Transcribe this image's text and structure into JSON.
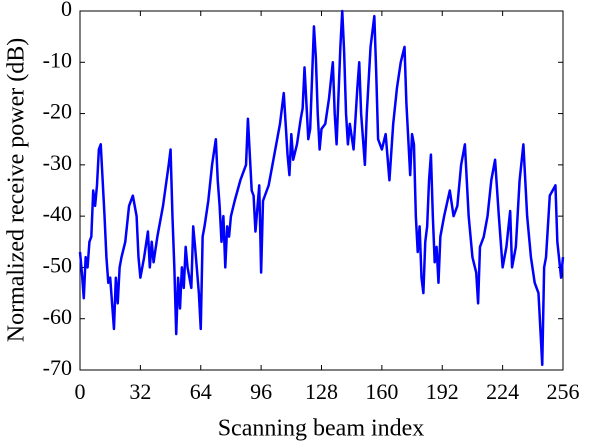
{
  "chart_data": {
    "type": "line",
    "xlabel": "Scanning beam index",
    "ylabel": "Normalized receive power (dB)",
    "xlim": [
      0,
      256
    ],
    "ylim": [
      -70,
      0
    ],
    "xticks": [
      0,
      32,
      64,
      96,
      128,
      160,
      192,
      224,
      256
    ],
    "yticks": [
      -70,
      -60,
      -50,
      -40,
      -30,
      -20,
      -10,
      0
    ],
    "grid": false,
    "series": [
      {
        "color": "#0000ff",
        "x": [
          0,
          1,
          2,
          3,
          4,
          5,
          6,
          7,
          8,
          9,
          10,
          11,
          12,
          13,
          14,
          15,
          16,
          17,
          18,
          19,
          20,
          21,
          22,
          24,
          26,
          28,
          30,
          31,
          32,
          34,
          36,
          37,
          38,
          39,
          41,
          44,
          47,
          48,
          49,
          50,
          51,
          52,
          53,
          54,
          55,
          56,
          57,
          59,
          60,
          61,
          63,
          64,
          65,
          66,
          68,
          70,
          72,
          73,
          74,
          75,
          76,
          77,
          78,
          79,
          80,
          82,
          85,
          88,
          89,
          90,
          91,
          92,
          93,
          95,
          96,
          97,
          98,
          100,
          103,
          106,
          108,
          109,
          110,
          111,
          112,
          113,
          115,
          117,
          118,
          119,
          120,
          121,
          122,
          124,
          125,
          126,
          127,
          128,
          130,
          132,
          134,
          135,
          136,
          138,
          139,
          140,
          141,
          142,
          143,
          145,
          147,
          148,
          149,
          150,
          151,
          152,
          154,
          156,
          157,
          158,
          160,
          162,
          164,
          166,
          168,
          170,
          172,
          173,
          175,
          176,
          177,
          178,
          179,
          180,
          181,
          182,
          183,
          184,
          185,
          186,
          187,
          188,
          189,
          190,
          191,
          193,
          196,
          198,
          200,
          202,
          204,
          206,
          208,
          210,
          211,
          212,
          214,
          216,
          218,
          220,
          222,
          224,
          226,
          228,
          229,
          231,
          233,
          235,
          237,
          239,
          241,
          243,
          245,
          246,
          247,
          249,
          252,
          253,
          255,
          256
        ],
        "values": [
          -47,
          -51,
          -56,
          -48,
          -50,
          -45,
          -44,
          -35,
          -38,
          -34,
          -27,
          -26,
          -33,
          -40,
          -48,
          -53,
          -52,
          -57,
          -62,
          -52,
          -57,
          -50,
          -48,
          -45,
          -38,
          -36,
          -40,
          -48,
          -52,
          -48,
          -43,
          -50,
          -45,
          -49,
          -44,
          -38,
          -30,
          -27,
          -40,
          -50,
          -63,
          -52,
          -58,
          -50,
          -54,
          -46,
          -50,
          -54,
          -42,
          -46,
          -55,
          -62,
          -44,
          -42,
          -37,
          -30,
          -25,
          -33,
          -38,
          -45,
          -40,
          -50,
          -42,
          -44,
          -40,
          -37,
          -33,
          -30,
          -21,
          -28,
          -35,
          -36,
          -43,
          -34,
          -51,
          -37,
          -36,
          -34,
          -28,
          -22,
          -16,
          -22,
          -28,
          -32,
          -24,
          -29,
          -26,
          -21,
          -19,
          -11,
          -18,
          -25,
          -23,
          -3,
          -9,
          -20,
          -27,
          -23,
          -22,
          -17,
          -10,
          -20,
          -26,
          -7,
          0,
          -8,
          -20,
          -26,
          -22,
          -27,
          -15,
          -10,
          -20,
          -25,
          -30,
          -20,
          -7,
          -1,
          -12,
          -25,
          -27,
          -24,
          -33,
          -22,
          -15,
          -10,
          -7,
          -18,
          -32,
          -24,
          -26,
          -40,
          -47,
          -42,
          -52,
          -55,
          -45,
          -42,
          -33,
          -28,
          -40,
          -49,
          -46,
          -53,
          -44,
          -40,
          -35,
          -40,
          -38,
          -30,
          -26,
          -40,
          -48,
          -51,
          -57,
          -46,
          -44,
          -40,
          -33,
          -29,
          -40,
          -50,
          -46,
          -39,
          -50,
          -46,
          -33,
          -26,
          -40,
          -48,
          -53,
          -55,
          -69,
          -50,
          -48,
          -36,
          -34,
          -45,
          -52,
          -48
        ]
      }
    ]
  }
}
